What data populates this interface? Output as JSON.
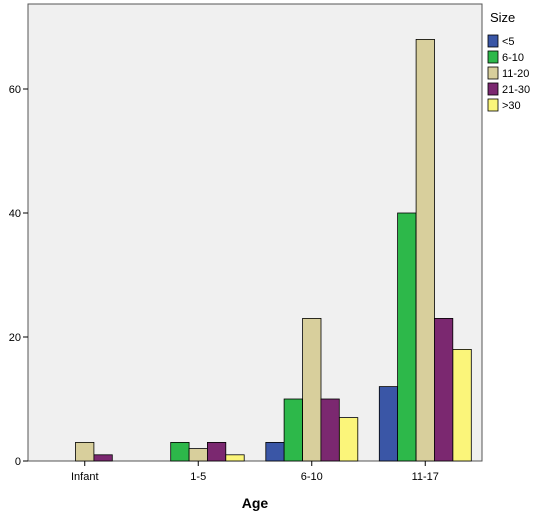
{
  "chart_data": {
    "type": "bar",
    "categories": [
      "Infant",
      "1-5",
      "6-10",
      "11-17"
    ],
    "series": [
      {
        "name": "<5",
        "color": "#3a56a6",
        "values": [
          0,
          0,
          3,
          12
        ]
      },
      {
        "name": "6-10",
        "color": "#2db84a",
        "values": [
          0,
          3,
          10,
          40
        ]
      },
      {
        "name": "11-20",
        "color": "#d8cf9c",
        "values": [
          3,
          2,
          23,
          68
        ]
      },
      {
        "name": "21-30",
        "color": "#7b2870",
        "values": [
          1,
          3,
          10,
          23
        ]
      },
      {
        "name": ">30",
        "color": "#fbf57a",
        "values": [
          0,
          1,
          7,
          18
        ]
      }
    ],
    "xlabel": "Age",
    "ylabel": "",
    "ylim": [
      0,
      70
    ],
    "yticks": [
      0,
      20,
      40,
      60
    ],
    "legend_title": "Size",
    "legend_position": "top-right",
    "plot_background": "#f0f0f0",
    "grid": false
  }
}
